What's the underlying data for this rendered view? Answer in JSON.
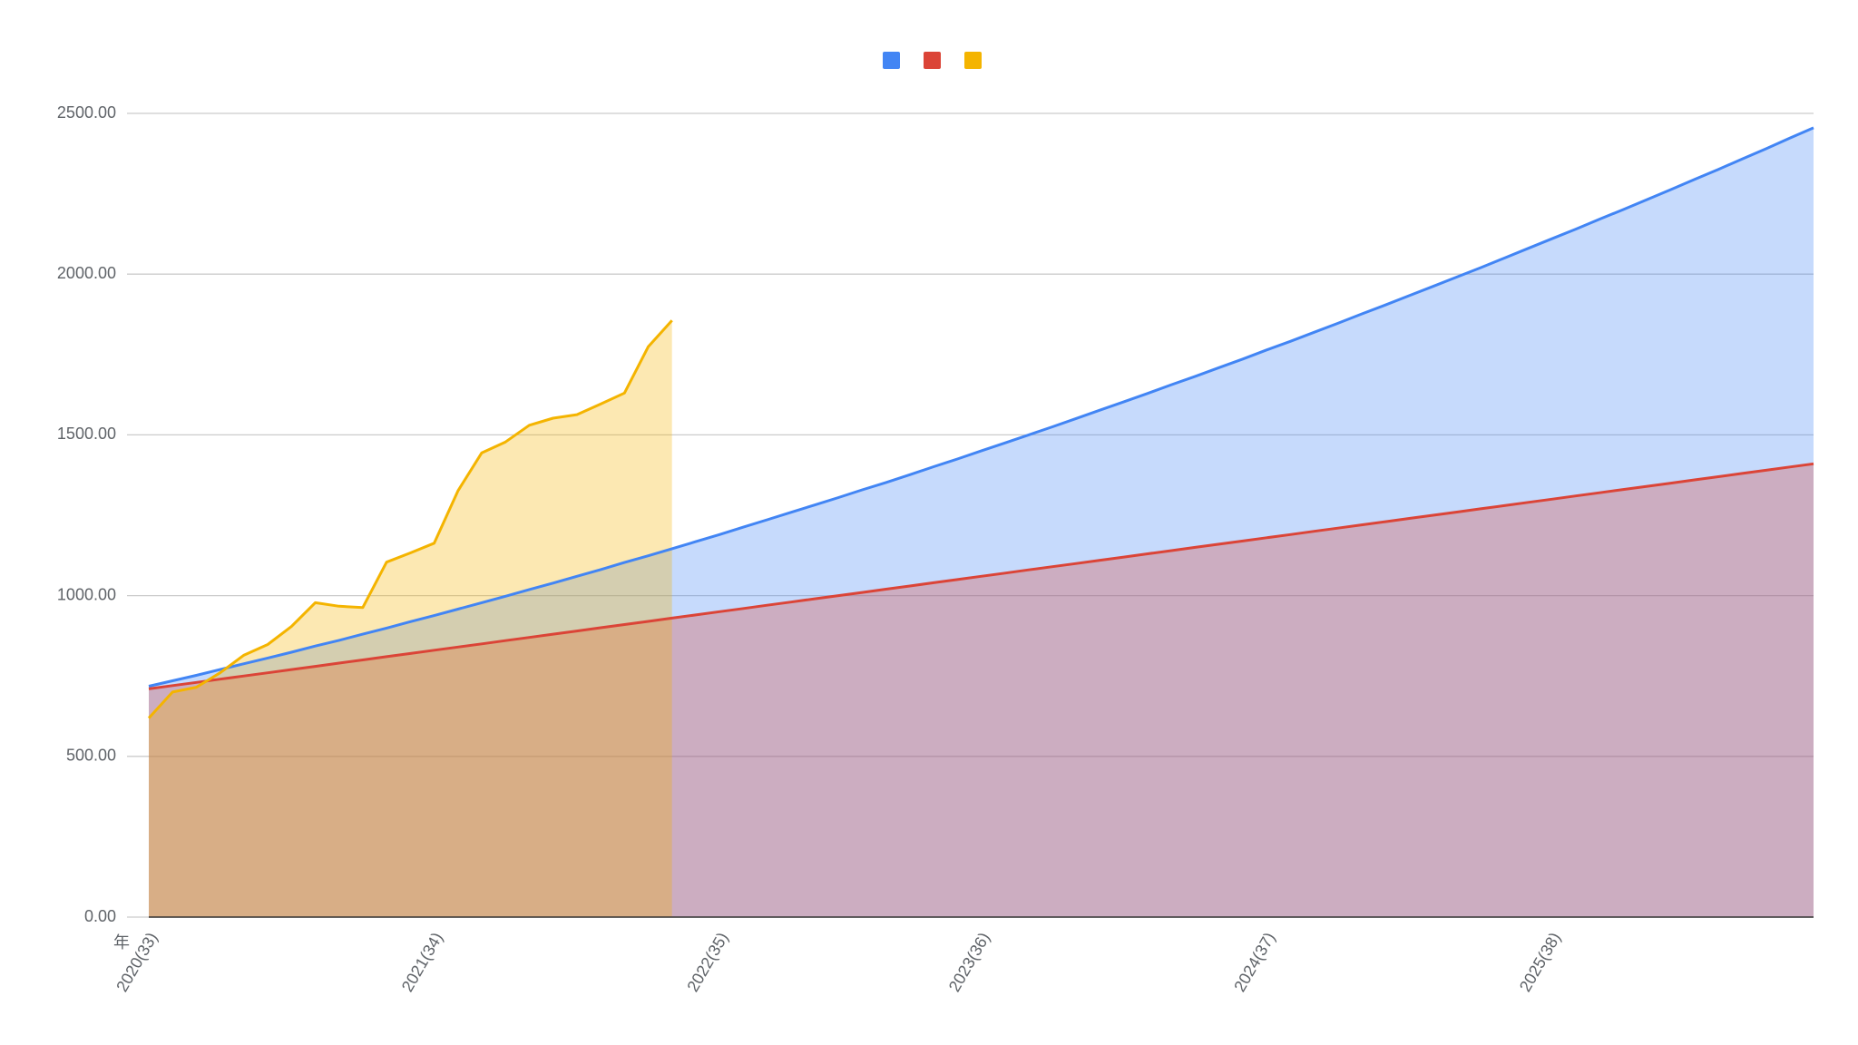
{
  "chart_data": {
    "type": "area",
    "x_label": "年",
    "categories": [
      "2020(33)",
      null,
      null,
      null,
      null,
      null,
      null,
      null,
      null,
      null,
      null,
      null,
      "2021(34)",
      null,
      null,
      null,
      null,
      null,
      null,
      null,
      null,
      null,
      null,
      null,
      "2022(35)",
      null,
      null,
      null,
      null,
      null,
      null,
      null,
      null,
      null,
      null,
      "2023(36)",
      null,
      null,
      null,
      null,
      null,
      null,
      null,
      null,
      null,
      null,
      null,
      "2024(37)",
      null,
      null,
      null,
      null,
      null,
      null,
      null,
      null,
      null,
      null,
      null,
      "2025(38)",
      null,
      null,
      null,
      null,
      null,
      null,
      null,
      null,
      null,
      null,
      null
    ],
    "series": [
      {
        "color": "#4285f4",
        "values": [
          718,
          735,
          752,
          770,
          788,
          806,
          824,
          843,
          861,
          880,
          899,
          919,
          938,
          958,
          978,
          998,
          1019,
          1039,
          1060,
          1081,
          1103,
          1124,
          1146,
          1168,
          1190,
          1213,
          1236,
          1259,
          1282,
          1305,
          1329,
          1352,
          1376,
          1401,
          1425,
          1450,
          1475,
          1500,
          1525,
          1551,
          1577,
          1603,
          1629,
          1656,
          1682,
          1709,
          1736,
          1764,
          1791,
          1819,
          1847,
          1876,
          1904,
          1933,
          1962,
          1991,
          2020,
          2050,
          2080,
          2110,
          2140,
          2171,
          2201,
          2232,
          2263,
          2295,
          2326,
          2358,
          2390,
          2423,
          2455
        ]
      },
      {
        "color": "#db4437",
        "values": [
          710,
          720,
          730,
          740,
          750,
          760,
          770,
          780,
          790,
          800,
          810,
          820,
          830,
          840,
          850,
          860,
          870,
          880,
          890,
          900,
          910,
          920,
          930,
          940,
          950,
          960,
          970,
          980,
          990,
          1000,
          1010,
          1020,
          1030,
          1040,
          1050,
          1060,
          1070,
          1080,
          1090,
          1100,
          1110,
          1120,
          1130,
          1140,
          1150,
          1160,
          1170,
          1180,
          1190,
          1200,
          1210,
          1220,
          1230,
          1240,
          1250,
          1260,
          1270,
          1280,
          1290,
          1300,
          1310,
          1320,
          1330,
          1340,
          1350,
          1360,
          1370,
          1380,
          1390,
          1400,
          1410
        ]
      },
      {
        "color": "#f4b400",
        "values": [
          619,
          700,
          715,
          760,
          815,
          848,
          904,
          978,
          967,
          963,
          1104,
          1133,
          1163,
          1326,
          1444,
          1478,
          1530,
          1552,
          1563,
          1596,
          1630,
          1774,
          1856,
          null,
          null,
          null,
          null,
          null,
          null,
          null,
          null,
          null,
          null,
          null,
          null,
          null,
          null,
          null,
          null,
          null,
          null,
          null,
          null,
          null,
          null,
          null,
          null,
          null,
          null,
          null,
          null,
          null,
          null,
          null,
          null,
          null,
          null,
          null,
          null,
          null,
          null,
          null,
          null,
          null,
          null,
          null,
          null,
          null,
          null,
          null,
          null
        ]
      }
    ],
    "ylim": [
      0,
      2500
    ],
    "yticks": [
      {
        "value": 0,
        "label": "0.00"
      },
      {
        "value": 500,
        "label": "500.00"
      },
      {
        "value": 1000,
        "label": "1000.00"
      },
      {
        "value": 1500,
        "label": "1500.00"
      },
      {
        "value": 2000,
        "label": "2000.00"
      },
      {
        "value": 2500,
        "label": "2500.00"
      }
    ],
    "grid": true
  }
}
